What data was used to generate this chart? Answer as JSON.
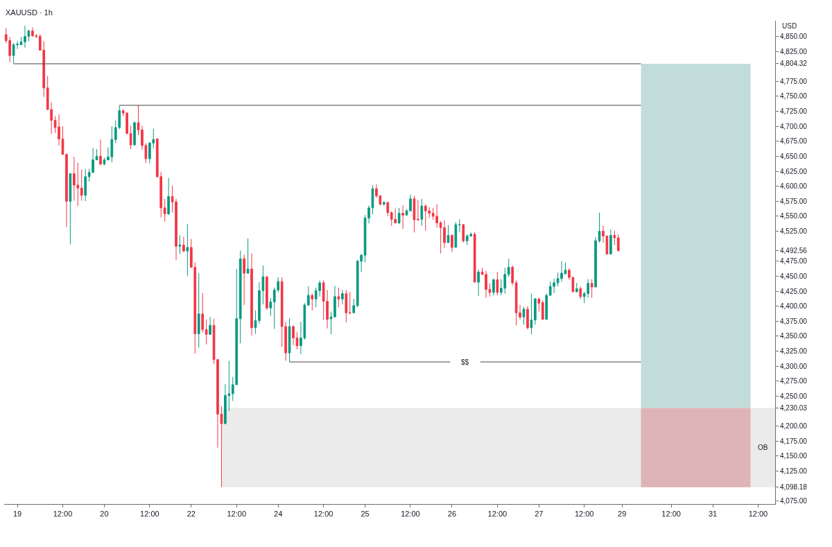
{
  "chart_data": {
    "type": "candlestick",
    "title": "XAUUSD · 1h",
    "ylabel": "USD",
    "categories": [
      null,
      null,
      null,
      "19",
      null,
      null,
      null,
      null,
      null,
      null,
      null,
      null,
      null,
      null,
      null,
      "12:00",
      null,
      null,
      null,
      null,
      null,
      null,
      null,
      null,
      null,
      null,
      "20",
      null,
      null,
      null,
      null,
      null,
      null,
      null,
      null,
      null,
      null,
      null,
      "12:00",
      null,
      null,
      null,
      null,
      null,
      null,
      null,
      null,
      null,
      null,
      "22",
      null,
      null,
      null,
      null,
      null,
      null,
      null,
      null,
      null,
      null,
      null,
      "12:00",
      null,
      null,
      null,
      null,
      null,
      null,
      null,
      null,
      null,
      null,
      "24",
      null,
      null,
      null,
      null,
      null,
      null,
      null,
      null,
      null,
      null,
      null,
      "12:00",
      null,
      null,
      null,
      null,
      null,
      null,
      null,
      null,
      null,
      null,
      "25",
      null,
      null,
      null,
      null,
      null,
      null,
      null,
      null,
      null,
      null,
      null,
      "12:00",
      null,
      null,
      null,
      null,
      null,
      null,
      null,
      null,
      null,
      null,
      "26",
      null,
      null,
      null,
      null,
      null,
      null,
      null,
      null,
      null,
      null,
      null,
      "12:00",
      null,
      null,
      null,
      null,
      null,
      null,
      null,
      null,
      null,
      null,
      "27",
      null,
      null,
      null,
      null,
      null,
      null,
      null,
      null,
      null,
      null,
      null,
      "12:00",
      null,
      null,
      null,
      null,
      null,
      null,
      null,
      null,
      null,
      "29",
      null,
      null,
      null,
      null,
      null,
      null,
      null,
      null,
      null,
      null,
      null,
      null,
      "12:00",
      null,
      null,
      null,
      null,
      null,
      null,
      null,
      null,
      null,
      null,
      "31",
      null,
      null,
      null,
      null,
      null,
      null,
      null,
      null,
      null,
      null,
      null,
      "12:00",
      null,
      null,
      null,
      null
    ],
    "ohlc": [
      [
        4853,
        4864,
        4839,
        4843
      ],
      [
        4843,
        4849,
        4807,
        4818
      ],
      [
        4818,
        4839,
        4805,
        4836
      ],
      [
        4836,
        4842,
        4829,
        4837
      ],
      [
        4836,
        4849,
        4836,
        4841
      ],
      [
        4841,
        4868,
        4831,
        4850
      ],
      [
        4850,
        4861,
        4842,
        4859
      ],
      [
        4859,
        4865,
        4849,
        4851
      ],
      [
        4851,
        4854,
        4847,
        4850
      ],
      [
        4850,
        4854,
        4827,
        4827
      ],
      [
        4827,
        4842,
        4749,
        4764
      ],
      [
        4764,
        4784,
        4728,
        4728
      ],
      [
        4728,
        4740,
        4687,
        4710
      ],
      [
        4710,
        4717,
        4689,
        4698
      ],
      [
        4699,
        4720,
        4668,
        4679
      ],
      [
        4679,
        4700,
        4653,
        4653
      ],
      [
        4653,
        4655,
        4532,
        4575
      ],
      [
        4575,
        4621,
        4503,
        4621
      ],
      [
        4621,
        4649,
        4576,
        4602
      ],
      [
        4602,
        4639,
        4567,
        4597
      ],
      [
        4597,
        4628,
        4576,
        4585
      ],
      [
        4585,
        4629,
        4575,
        4616
      ],
      [
        4616,
        4629,
        4608,
        4623
      ],
      [
        4623,
        4664,
        4623,
        4644
      ],
      [
        4644,
        4662,
        4644,
        4650
      ],
      [
        4650,
        4678,
        4635,
        4637
      ],
      [
        4637,
        4648,
        4635,
        4644
      ],
      [
        4644,
        4665,
        4643,
        4649
      ],
      [
        4649,
        4700,
        4640,
        4678
      ],
      [
        4678,
        4710,
        4672,
        4698
      ],
      [
        4698,
        4735,
        4695,
        4726
      ],
      [
        4726,
        4728,
        4717,
        4722
      ],
      [
        4722,
        4724,
        4687,
        4688
      ],
      [
        4688,
        4701,
        4662,
        4669
      ],
      [
        4669,
        4708,
        4668,
        4706
      ],
      [
        4706,
        4735,
        4685,
        4694
      ],
      [
        4694,
        4701,
        4661,
        4668
      ],
      [
        4668,
        4672,
        4639,
        4646
      ],
      [
        4646,
        4674,
        4638,
        4672
      ],
      [
        4672,
        4696,
        4663,
        4678
      ],
      [
        4679,
        4680,
        4614,
        4616
      ],
      [
        4616,
        4624,
        4548,
        4564
      ],
      [
        4564,
        4579,
        4541,
        4554
      ],
      [
        4554,
        4614,
        4552,
        4583
      ],
      [
        4583,
        4601,
        4556,
        4574
      ],
      [
        4574,
        4579,
        4477,
        4500
      ],
      [
        4500,
        4518,
        4487,
        4502
      ],
      [
        4502,
        4516,
        4490,
        4492
      ],
      [
        4492,
        4537,
        4450,
        4498
      ],
      [
        4498,
        4512,
        4465,
        4465
      ],
      [
        4465,
        4473,
        4321,
        4354
      ],
      [
        4354,
        4455,
        4331,
        4387
      ],
      [
        4387,
        4422,
        4356,
        4361
      ],
      [
        4361,
        4378,
        4336,
        4353
      ],
      [
        4353,
        4382,
        4352,
        4368
      ],
      [
        4368,
        4379,
        4304,
        4311
      ],
      [
        4311,
        4311,
        4164,
        4220
      ],
      [
        4220,
        4233,
        4098.18,
        4204
      ],
      [
        4204,
        4270,
        4204,
        4251
      ],
      [
        4251,
        4309,
        4225,
        4254
      ],
      [
        4254,
        4282,
        4242,
        4269
      ],
      [
        4269,
        4462,
        4269,
        4379
      ],
      [
        4379,
        4493,
        4338,
        4479
      ],
      [
        4479,
        4486,
        4402,
        4455
      ],
      [
        4455,
        4513,
        4454,
        4462
      ],
      [
        4462,
        4488,
        4351,
        4364
      ],
      [
        4364,
        4393,
        4354,
        4376
      ],
      [
        4376,
        4440,
        4371,
        4426
      ],
      [
        4426,
        4468,
        4403,
        4449
      ],
      [
        4449,
        4450,
        4394,
        4397
      ],
      [
        4397,
        4414,
        4384,
        4407
      ],
      [
        4407,
        4431,
        4362,
        4427
      ],
      [
        4427,
        4448,
        4423,
        4441
      ],
      [
        4441,
        4448,
        4332,
        4366
      ],
      [
        4366,
        4374,
        4309,
        4322
      ],
      [
        4322,
        4380,
        4307,
        4366
      ],
      [
        4366,
        4368,
        4335,
        4347
      ],
      [
        4347,
        4357,
        4328,
        4334
      ],
      [
        4334,
        4374,
        4320,
        4347
      ],
      [
        4347,
        4405,
        4344,
        4402
      ],
      [
        4402,
        4433,
        4400,
        4418
      ],
      [
        4418,
        4421,
        4393,
        4412
      ],
      [
        4412,
        4431,
        4398,
        4426
      ],
      [
        4426,
        4443,
        4416,
        4439
      ],
      [
        4439,
        4443,
        4377,
        4408
      ],
      [
        4408,
        4427,
        4363,
        4378
      ],
      [
        4379,
        4391,
        4353,
        4382
      ],
      [
        4382,
        4434,
        4382,
        4416
      ],
      [
        4416,
        4431,
        4398,
        4412
      ],
      [
        4412,
        4427,
        4403,
        4421
      ],
      [
        4421,
        4427,
        4373,
        4389
      ],
      [
        4389,
        4424,
        4386,
        4389
      ],
      [
        4389,
        4412,
        4389,
        4401
      ],
      [
        4401,
        4477,
        4398,
        4475
      ],
      [
        4475,
        4487,
        4457,
        4485
      ],
      [
        4485,
        4552,
        4473,
        4547
      ],
      [
        4547,
        4568,
        4538,
        4564
      ],
      [
        4564,
        4602,
        4553,
        4596
      ],
      [
        4596,
        4603,
        4581,
        4584
      ],
      [
        4584,
        4585,
        4568,
        4570
      ],
      [
        4570,
        4575,
        4568,
        4573
      ],
      [
        4573,
        4574,
        4550,
        4556
      ],
      [
        4556,
        4558,
        4534,
        4545
      ],
      [
        4545,
        4563,
        4538,
        4539
      ],
      [
        4539,
        4564,
        4537,
        4555
      ],
      [
        4555,
        4568,
        4529,
        4552
      ],
      [
        4552,
        4562,
        4552,
        4559
      ],
      [
        4559,
        4586,
        4559,
        4579
      ],
      [
        4579,
        4584,
        4523,
        4544
      ],
      [
        4545,
        4577,
        4544,
        4544
      ],
      [
        4545,
        4579,
        4534,
        4567
      ],
      [
        4567,
        4570,
        4526,
        4559
      ],
      [
        4559,
        4565,
        4547,
        4555
      ],
      [
        4555,
        4564,
        4544,
        4550
      ],
      [
        4550,
        4570,
        4531,
        4539
      ],
      [
        4539,
        4542,
        4488,
        4531
      ],
      [
        4531,
        4543,
        4497,
        4506
      ],
      [
        4506,
        4535,
        4506,
        4518
      ],
      [
        4518,
        4520,
        4490,
        4498
      ],
      [
        4498,
        4540,
        4498,
        4536
      ],
      [
        4536,
        4545,
        4523,
        4536
      ],
      [
        4536,
        4537,
        4506,
        4509
      ],
      [
        4509,
        4520,
        4502,
        4517
      ],
      [
        4517,
        4523,
        4516,
        4520
      ],
      [
        4520,
        4524,
        4440,
        4440
      ],
      [
        4440,
        4461,
        4417,
        4457
      ],
      [
        4457,
        4464,
        4452,
        4453
      ],
      [
        4453,
        4459,
        4414,
        4428
      ],
      [
        4428,
        4438,
        4416,
        4423
      ],
      [
        4423,
        4446,
        4418,
        4444
      ],
      [
        4444,
        4457,
        4418,
        4423
      ],
      [
        4423,
        4445,
        4418,
        4430
      ],
      [
        4430,
        4464,
        4421,
        4453
      ],
      [
        4453,
        4479,
        4449,
        4465
      ],
      [
        4465,
        4468,
        4435,
        4439
      ],
      [
        4439,
        4443,
        4368,
        4389
      ],
      [
        4389,
        4402,
        4378,
        4382
      ],
      [
        4382,
        4399,
        4369,
        4395
      ],
      [
        4395,
        4400,
        4361,
        4364
      ],
      [
        4364,
        4421,
        4353,
        4377
      ],
      [
        4377,
        4414,
        4369,
        4412
      ],
      [
        4412,
        4414,
        4391,
        4405
      ],
      [
        4406,
        4410,
        4378,
        4378
      ],
      [
        4378,
        4421,
        4378,
        4418
      ],
      [
        4418,
        4441,
        4418,
        4433
      ],
      [
        4433,
        4446,
        4422,
        4439
      ],
      [
        4439,
        4456,
        4433,
        4446
      ],
      [
        4446,
        4475,
        4441,
        4455
      ],
      [
        4454,
        4473,
        4453,
        4460
      ],
      [
        4460,
        4463,
        4444,
        4448
      ],
      [
        4448,
        4449,
        4424,
        4424
      ],
      [
        4424,
        4439,
        4423,
        4429
      ],
      [
        4429,
        4433,
        4412,
        4416
      ],
      [
        4416,
        4424,
        4405,
        4421
      ],
      [
        4421,
        4445,
        4414,
        4438
      ],
      [
        4438,
        4445,
        4414,
        4432
      ],
      [
        4432,
        4515,
        4432,
        4509
      ],
      [
        4509,
        4556,
        4506,
        4525
      ],
      [
        4525,
        4534,
        4506,
        4517
      ],
      [
        4517,
        4518,
        4487,
        4487
      ],
      [
        4487,
        4528,
        4487,
        4518
      ],
      [
        4518,
        4526,
        4502,
        4514
      ],
      [
        4514,
        4520,
        4491,
        4492.56
      ],
      null,
      null,
      null,
      null,
      null,
      null,
      null,
      null,
      null,
      null,
      null,
      null,
      null,
      null,
      null,
      null,
      null,
      null,
      null,
      null,
      null,
      null,
      null,
      null,
      null,
      null,
      null,
      null,
      null,
      null,
      null,
      null,
      null,
      null,
      null,
      null,
      null,
      null,
      null,
      null,
      null
    ],
    "ylim": [
      4070,
      4876
    ],
    "yticks": [
      {
        "value": 4075,
        "label": "4,075.00"
      },
      {
        "value": 4098.18,
        "label": "4,098.18"
      },
      {
        "value": 4125,
        "label": "4,125.00"
      },
      {
        "value": 4150,
        "label": "4,150.00"
      },
      {
        "value": 4175,
        "label": "4,175.00"
      },
      {
        "value": 4200,
        "label": "4,200.00"
      },
      {
        "value": 4230.03,
        "label": "4,230.03"
      },
      {
        "value": 4250,
        "label": "4,250.00"
      },
      {
        "value": 4275,
        "label": "4,275.00"
      },
      {
        "value": 4300,
        "label": "4,300.00"
      },
      {
        "value": 4325,
        "label": "4,325.00"
      },
      {
        "value": 4350,
        "label": "4,350.00"
      },
      {
        "value": 4375,
        "label": "4,375.00"
      },
      {
        "value": 4400,
        "label": "4,400.00"
      },
      {
        "value": 4425,
        "label": "4,425.00"
      },
      {
        "value": 4450,
        "label": "4,450.00"
      },
      {
        "value": 4475,
        "label": "4,475.00"
      },
      {
        "value": 4492.56,
        "label": "4,492.56"
      },
      {
        "value": 4525,
        "label": "4,525.00"
      },
      {
        "value": 4550,
        "label": "4,550.00"
      },
      {
        "value": 4575,
        "label": "4,575.00"
      },
      {
        "value": 4600,
        "label": "4,600.00"
      },
      {
        "value": 4625,
        "label": "4,625.00"
      },
      {
        "value": 4650,
        "label": "4,650.00"
      },
      {
        "value": 4675,
        "label": "4,675.00"
      },
      {
        "value": 4700,
        "label": "4,700.00"
      },
      {
        "value": 4725,
        "label": "4,725.00"
      },
      {
        "value": 4750,
        "label": "4,750.00"
      },
      {
        "value": 4775,
        "label": "4,775.00"
      },
      {
        "value": 4804.32,
        "label": "4,804.32"
      },
      {
        "value": 4825,
        "label": "4,825.00"
      },
      {
        "value": 4850,
        "label": "4,850.00"
      }
    ],
    "ref_lines": [
      {
        "axis": "y",
        "value": 4804.32,
        "color": "#444444"
      },
      {
        "axis": "y",
        "value": 4735,
        "color": "#444444"
      },
      {
        "axis": "y",
        "value": 4307,
        "label": "$$",
        "color": "#444444"
      }
    ],
    "bands": [
      {
        "axis": "y",
        "from": 4098.18,
        "to": 4230.03,
        "label": "OB",
        "color": "#ebebeb"
      },
      {
        "axis": "y",
        "from": 4230.03,
        "to": 4804.32,
        "color": "#c2ddd9"
      },
      {
        "axis": "y",
        "from": 4098.18,
        "to": 4230.03,
        "color": "#dfb4b6"
      }
    ],
    "legend": false
  }
}
